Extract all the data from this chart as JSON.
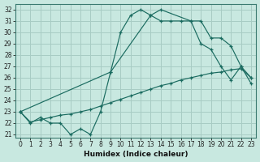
{
  "xlabel": "Humidex (Indice chaleur)",
  "bg_color": "#c8e8e0",
  "grid_color": "#a8ccc4",
  "line_color": "#1a6b60",
  "xlim": [
    -0.5,
    23.5
  ],
  "ylim_min": 20.7,
  "ylim_max": 32.5,
  "yticks": [
    21,
    22,
    23,
    24,
    25,
    26,
    27,
    28,
    29,
    30,
    31,
    32
  ],
  "xticks": [
    0,
    1,
    2,
    3,
    4,
    5,
    6,
    7,
    8,
    9,
    10,
    11,
    12,
    13,
    14,
    15,
    16,
    17,
    18,
    19,
    20,
    21,
    22,
    23
  ],
  "curve1_x": [
    0,
    1,
    2,
    3,
    4,
    5,
    6,
    7,
    8,
    9,
    10,
    11,
    12,
    13,
    14,
    15,
    16,
    17,
    18,
    19,
    20,
    21,
    22,
    23
  ],
  "curve1_y": [
    23,
    22,
    22.5,
    22,
    22,
    21,
    21.5,
    21,
    23,
    26.5,
    30,
    31.5,
    32,
    31.5,
    31,
    31,
    31,
    31,
    29,
    28.5,
    27,
    25.8,
    27,
    25.5
  ],
  "curve2_x": [
    0,
    1,
    2,
    3,
    4,
    5,
    6,
    7,
    8,
    9,
    10,
    11,
    12,
    13,
    14,
    15,
    16,
    17,
    18,
    19,
    20,
    21,
    22,
    23
  ],
  "curve2_y": [
    23,
    22.1,
    22.3,
    22.5,
    22.7,
    22.8,
    23.0,
    23.2,
    23.5,
    23.8,
    24.1,
    24.4,
    24.7,
    25.0,
    25.3,
    25.5,
    25.8,
    26.0,
    26.2,
    26.4,
    26.5,
    26.7,
    26.8,
    26.0
  ],
  "curve3_x": [
    0,
    9,
    13,
    14,
    17,
    18,
    19,
    20,
    21,
    22,
    23
  ],
  "curve3_y": [
    23,
    26.5,
    31.5,
    32,
    31,
    31,
    29.5,
    29.5,
    28.8,
    27,
    26
  ]
}
